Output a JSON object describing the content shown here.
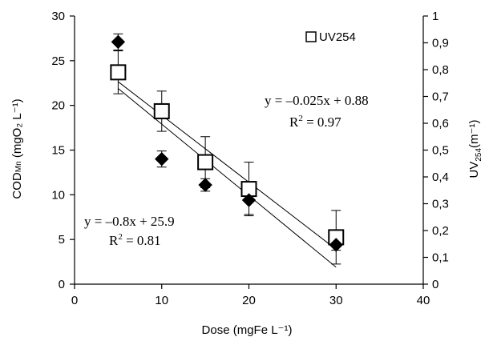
{
  "chart_data": {
    "type": "scatter",
    "x_axis": {
      "label": "Dose (mgFe L⁻¹)",
      "range": [
        0,
        40
      ],
      "ticks": [
        0,
        10,
        20,
        30,
        40
      ],
      "tick_labels": [
        "0",
        "10",
        "20",
        "30",
        "40"
      ]
    },
    "y_axis_left": {
      "label_main": "COD",
      "label_sub": "Mn",
      "label_rest": " (mgO₂ L⁻¹)",
      "range": [
        0,
        30
      ],
      "ticks": [
        0,
        5,
        10,
        15,
        20,
        25,
        30
      ],
      "tick_labels": [
        "0",
        "5",
        "10",
        "15",
        "20",
        "25",
        "30"
      ]
    },
    "y_axis_right": {
      "label_main": "UV",
      "label_sub": "254",
      "label_rest": "(m⁻¹)",
      "range": [
        0,
        1
      ],
      "ticks": [
        0,
        0.1,
        0.2,
        0.3,
        0.4,
        0.5,
        0.6,
        0.7,
        0.8,
        0.9,
        1
      ],
      "tick_labels": [
        "0",
        "0,1",
        "0,2",
        "0,3",
        "0,4",
        "0,5",
        "0,6",
        "0,7",
        "0,8",
        "0,9",
        "1"
      ]
    },
    "series": [
      {
        "name": "UV254",
        "axis": "right",
        "marker": "open-square",
        "x": [
          5,
          10,
          15,
          20,
          30
        ],
        "y": [
          0.79,
          0.645,
          0.455,
          0.355,
          0.175
        ],
        "err_plus": [
          0.08,
          0.075,
          0.095,
          0.1,
          0.1
        ],
        "err_minus": [
          0.08,
          0.075,
          0.095,
          0.1,
          0.1
        ],
        "fit": {
          "slope": -0.025,
          "intercept": 0.88,
          "x_range": [
            5,
            30
          ]
        },
        "equation": "y = –0.025x + 0.88",
        "r2_label": "R",
        "r2_sup": "2",
        "r2_value": " = 0.97"
      },
      {
        "name": "",
        "axis": "left",
        "marker": "filled-diamond",
        "x": [
          5,
          10,
          15,
          20,
          30
        ],
        "y": [
          27.1,
          14.0,
          11.1,
          9.4,
          4.4
        ],
        "err_plus": [
          0.9,
          0.9,
          0.7,
          1.6,
          0.6
        ],
        "err_minus": [
          0.9,
          0.9,
          0.7,
          1.6,
          0.6
        ],
        "fit": {
          "slope": -0.8,
          "intercept": 25.9,
          "x_range": [
            5,
            30
          ]
        },
        "equation": "y = –0.8x + 25.9",
        "r2_label": "R",
        "r2_sup": "2",
        "r2_value": " = 0.81"
      }
    ],
    "legend": {
      "position": "top-right",
      "label": "UV254"
    },
    "grid": false
  }
}
